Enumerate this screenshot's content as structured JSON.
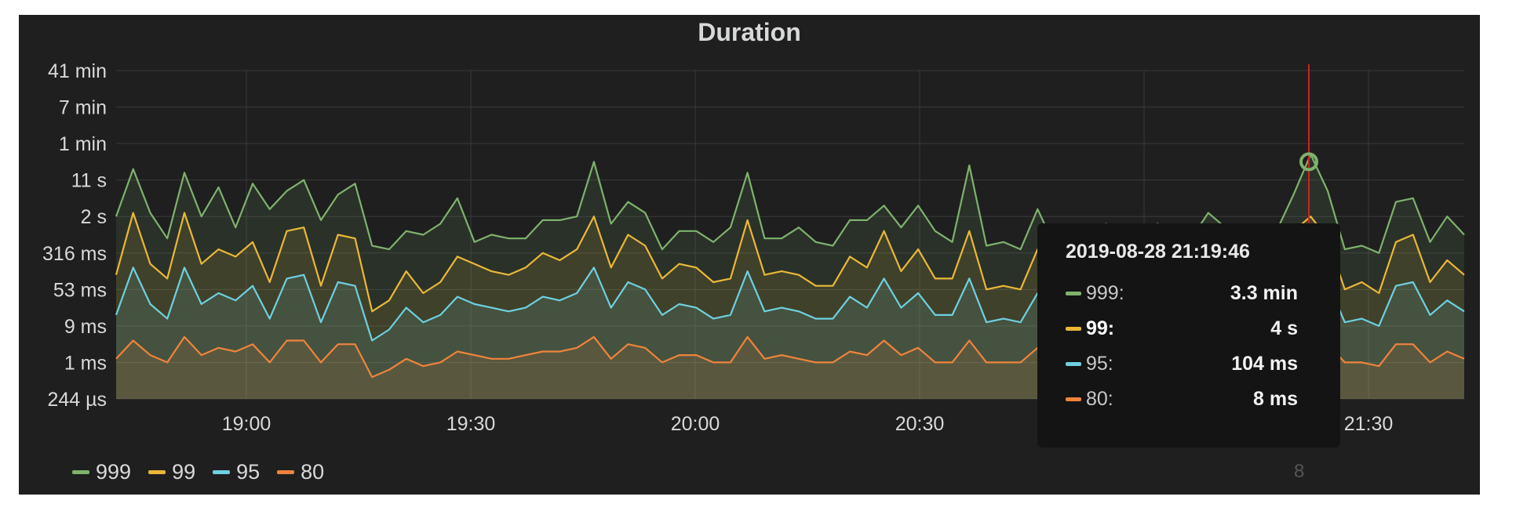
{
  "panel": {
    "title": "Duration"
  },
  "chart_data": {
    "type": "area",
    "title": "Duration",
    "xlabel": "",
    "ylabel": "",
    "y_scale": "log",
    "y_ticks": [
      "41 min",
      "7 min",
      "1 min",
      "11 s",
      "2 s",
      "316 ms",
      "53 ms",
      "9 ms",
      "1 ms",
      "244 µs"
    ],
    "x_ticks": [
      "19:00",
      "19:30",
      "20:00",
      "20:30",
      "21:00",
      "21:30"
    ],
    "x_range": [
      "18:43",
      "21:43"
    ],
    "grid": true,
    "legend_position": "bottom-left",
    "series": [
      {
        "name": "999",
        "color": "#7eb26d",
        "levels": [
          5.0,
          6.3,
          5.1,
          4.4,
          6.2,
          5.0,
          5.8,
          4.7,
          5.9,
          5.2,
          5.7,
          6.0,
          4.9,
          5.6,
          5.9,
          4.2,
          4.1,
          4.6,
          4.5,
          4.8,
          5.5,
          4.3,
          4.5,
          4.4,
          4.4,
          4.9,
          4.9,
          5.0,
          6.5,
          4.8,
          5.4,
          5.1,
          4.1,
          4.6,
          4.6,
          4.3,
          4.7,
          6.2,
          4.4,
          4.4,
          4.7,
          4.3,
          4.2,
          4.9,
          4.9,
          5.3,
          4.7,
          5.3,
          4.6,
          4.3,
          6.4,
          4.2,
          4.3,
          4.1,
          5.2,
          4.2,
          4.1,
          4.3,
          4.8,
          4.6,
          4.5,
          4.8,
          4.7,
          4.4,
          5.1,
          4.7,
          4.5,
          4.2,
          4.6,
          5.6,
          6.7,
          5.7,
          4.1,
          4.2,
          4.0,
          5.4,
          5.5,
          4.3,
          5.0,
          4.5
        ]
      },
      {
        "name": "99",
        "color": "#eab839",
        "levels": [
          3.4,
          5.1,
          3.7,
          3.3,
          5.1,
          3.7,
          4.1,
          3.9,
          4.3,
          3.2,
          4.6,
          4.7,
          3.1,
          4.5,
          4.4,
          2.4,
          2.7,
          3.5,
          2.9,
          3.2,
          3.9,
          3.7,
          3.5,
          3.4,
          3.6,
          4.0,
          3.8,
          4.1,
          5.0,
          3.6,
          4.5,
          4.2,
          3.3,
          3.7,
          3.6,
          3.2,
          3.3,
          4.9,
          3.4,
          3.5,
          3.4,
          3.1,
          3.1,
          3.9,
          3.6,
          4.6,
          3.5,
          4.1,
          3.3,
          3.3,
          4.6,
          3.0,
          3.1,
          3.0,
          4.1,
          3.1,
          2.9,
          3.2,
          3.6,
          3.4,
          3.4,
          3.8,
          3.6,
          3.3,
          3.9,
          3.7,
          3.4,
          3.1,
          3.4,
          4.6,
          5.0,
          4.4,
          3.0,
          3.2,
          2.9,
          4.3,
          4.5,
          3.2,
          3.8,
          3.4
        ]
      },
      {
        "name": "95",
        "color": "#6ed0e0",
        "levels": [
          2.3,
          3.6,
          2.6,
          2.2,
          3.6,
          2.6,
          2.9,
          2.7,
          3.1,
          2.2,
          3.3,
          3.4,
          2.1,
          3.2,
          3.1,
          1.6,
          1.9,
          2.5,
          2.1,
          2.3,
          2.8,
          2.6,
          2.5,
          2.4,
          2.5,
          2.8,
          2.7,
          2.9,
          3.6,
          2.5,
          3.2,
          3.0,
          2.3,
          2.6,
          2.5,
          2.2,
          2.3,
          3.5,
          2.4,
          2.5,
          2.4,
          2.2,
          2.2,
          2.8,
          2.5,
          3.3,
          2.5,
          2.9,
          2.3,
          2.3,
          3.3,
          2.1,
          2.2,
          2.1,
          2.9,
          2.2,
          2.0,
          2.3,
          2.5,
          2.4,
          2.4,
          2.7,
          2.5,
          2.3,
          2.8,
          2.6,
          2.4,
          2.2,
          2.4,
          3.3,
          3.7,
          3.2,
          2.1,
          2.2,
          2.0,
          3.1,
          3.2,
          2.3,
          2.7,
          2.4
        ]
      },
      {
        "name": "80",
        "color": "#ef843c",
        "levels": [
          1.1,
          1.6,
          1.2,
          1.0,
          1.7,
          1.2,
          1.4,
          1.3,
          1.5,
          1.0,
          1.6,
          1.6,
          1.0,
          1.5,
          1.5,
          0.6,
          0.8,
          1.1,
          0.9,
          1.0,
          1.3,
          1.2,
          1.1,
          1.1,
          1.2,
          1.3,
          1.3,
          1.4,
          1.7,
          1.1,
          1.5,
          1.4,
          1.0,
          1.2,
          1.2,
          1.0,
          1.0,
          1.7,
          1.1,
          1.2,
          1.1,
          1.0,
          1.0,
          1.3,
          1.2,
          1.6,
          1.2,
          1.4,
          1.0,
          1.0,
          1.6,
          1.0,
          1.0,
          1.0,
          1.4,
          1.0,
          0.9,
          1.0,
          1.2,
          1.1,
          1.1,
          1.3,
          1.2,
          1.0,
          1.3,
          1.2,
          1.1,
          1.0,
          1.1,
          1.6,
          1.7,
          1.5,
          1.0,
          1.0,
          0.9,
          1.5,
          1.5,
          1.0,
          1.3,
          1.1
        ]
      }
    ],
    "annotation_line_color": "#cc2222"
  },
  "legend": [
    {
      "label": "999",
      "color": "#7eb26d"
    },
    {
      "label": "99",
      "color": "#eab839"
    },
    {
      "label": "95",
      "color": "#6ed0e0"
    },
    {
      "label": "80",
      "color": "#ef843c"
    }
  ],
  "tooltip": {
    "time": "2019-08-28 21:19:46",
    "rows": [
      {
        "name": "999:",
        "value": "3.3 min",
        "color": "#7eb26d"
      },
      {
        "name": "99:",
        "value": "4 s",
        "color": "#eab839"
      },
      {
        "name": "95:",
        "value": "104 ms",
        "color": "#6ed0e0"
      },
      {
        "name": "80:",
        "value": "8 ms",
        "color": "#ef843c"
      }
    ]
  },
  "badge": "8"
}
